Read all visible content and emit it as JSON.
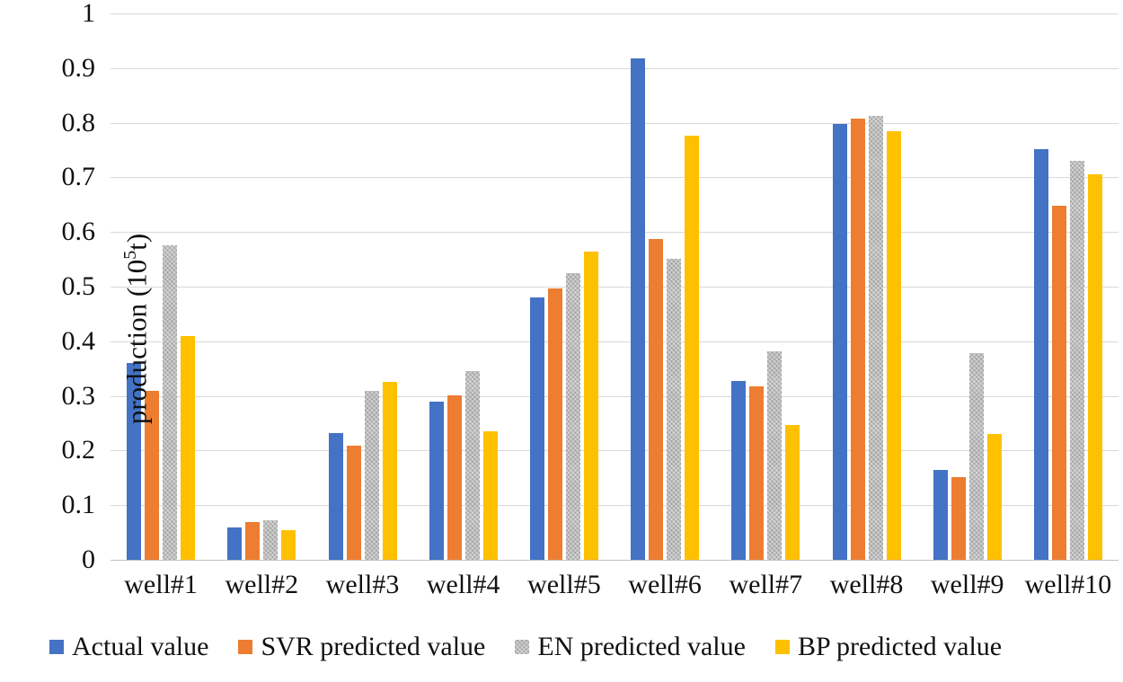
{
  "chart_data": {
    "type": "bar",
    "title": "",
    "xlabel": "",
    "ylabel": {
      "prefix": "production (10",
      "sup": "5",
      "suffix": "t)"
    },
    "ylim": [
      0,
      1
    ],
    "yticks": [
      "0",
      "0.1",
      "0.2",
      "0.3",
      "0.4",
      "0.5",
      "0.6",
      "0.7",
      "0.8",
      "0.9",
      "1"
    ],
    "grid": true,
    "legend_position": "bottom",
    "categories": [
      "well#1",
      "well#2",
      "well#3",
      "well#4",
      "well#5",
      "well#6",
      "well#7",
      "well#8",
      "well#9",
      "well#10"
    ],
    "series": [
      {
        "name": "Actual value",
        "color": "#4472C4",
        "pattern": false,
        "values": [
          0.36,
          0.06,
          0.232,
          0.289,
          0.481,
          0.918,
          0.328,
          0.797,
          0.164,
          0.752
        ]
      },
      {
        "name": "SVR predicted value",
        "color": "#ED7D31",
        "pattern": false,
        "values": [
          0.31,
          0.069,
          0.209,
          0.301,
          0.497,
          0.587,
          0.318,
          0.807,
          0.152,
          0.648
        ]
      },
      {
        "name": "EN predicted value",
        "color": "#A5A5A5",
        "pattern": true,
        "values": [
          0.575,
          0.072,
          0.31,
          0.346,
          0.524,
          0.551,
          0.382,
          0.812,
          0.378,
          0.731
        ]
      },
      {
        "name": "BP predicted value",
        "color": "#FFC000",
        "pattern": false,
        "values": [
          0.41,
          0.055,
          0.325,
          0.236,
          0.565,
          0.776,
          0.246,
          0.784,
          0.231,
          0.706
        ]
      }
    ]
  },
  "colors": {
    "gridline": "#D9D9D9",
    "axis_line": "#C0C0C0",
    "text": "#111111",
    "background": "#FFFFFF"
  }
}
